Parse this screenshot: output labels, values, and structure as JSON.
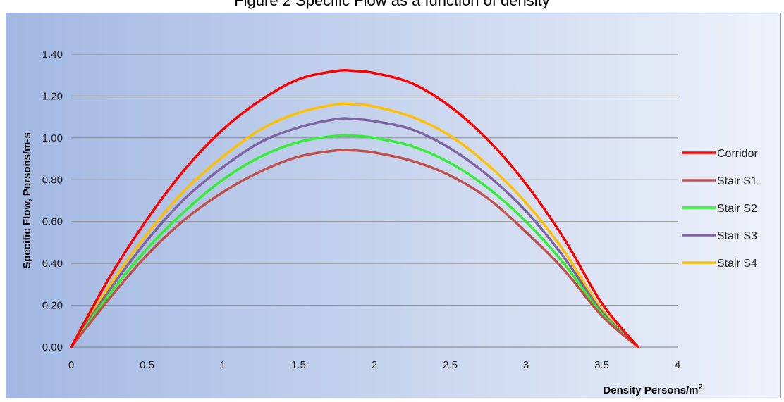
{
  "chart_data": {
    "type": "line",
    "title": "Figure 2 Specific Flow as a function of density",
    "xlabel": "Density Persons/m²",
    "ylabel": "Specific Flow, Persons/m-s",
    "xlim": [
      0,
      4
    ],
    "ylim": [
      0,
      1.4
    ],
    "x_ticks": [
      "0",
      "0.5",
      "1",
      "1.5",
      "2",
      "2.5",
      "3",
      "3.5",
      "4"
    ],
    "y_ticks": [
      "0.00",
      "0.20",
      "0.40",
      "0.60",
      "0.80",
      "1.00",
      "1.20",
      "1.40"
    ],
    "grid": "horizontal",
    "legend_position": "right",
    "x": [
      0,
      0.25,
      0.5,
      0.75,
      1.0,
      1.25,
      1.5,
      1.75,
      1.87,
      2.0,
      2.25,
      2.5,
      2.75,
      3.0,
      3.25,
      3.5,
      3.74
    ],
    "series": [
      {
        "name": "Corridor",
        "color": "#ff0000",
        "values": [
          0.0,
          0.33,
          0.61,
          0.85,
          1.04,
          1.18,
          1.28,
          1.32,
          1.32,
          1.31,
          1.26,
          1.15,
          0.99,
          0.78,
          0.52,
          0.21,
          0.0
        ]
      },
      {
        "name": "Stair S1",
        "color": "#c0504d",
        "values": [
          0.0,
          0.23,
          0.44,
          0.61,
          0.74,
          0.84,
          0.91,
          0.94,
          0.94,
          0.93,
          0.89,
          0.82,
          0.71,
          0.55,
          0.37,
          0.15,
          0.0
        ]
      },
      {
        "name": "Stair S2",
        "color": "#33ee33",
        "values": [
          0.0,
          0.25,
          0.47,
          0.65,
          0.8,
          0.91,
          0.98,
          1.01,
          1.01,
          1.0,
          0.96,
          0.88,
          0.76,
          0.6,
          0.4,
          0.16,
          0.0
        ]
      },
      {
        "name": "Stair S3",
        "color": "#8064a2",
        "values": [
          0.0,
          0.27,
          0.51,
          0.71,
          0.86,
          0.98,
          1.05,
          1.09,
          1.09,
          1.08,
          1.04,
          0.95,
          0.82,
          0.65,
          0.43,
          0.17,
          0.0
        ]
      },
      {
        "name": "Stair S4",
        "color": "#ffc000",
        "values": [
          0.0,
          0.29,
          0.54,
          0.75,
          0.91,
          1.04,
          1.12,
          1.16,
          1.16,
          1.15,
          1.1,
          1.01,
          0.87,
          0.69,
          0.46,
          0.18,
          0.0
        ]
      }
    ]
  }
}
